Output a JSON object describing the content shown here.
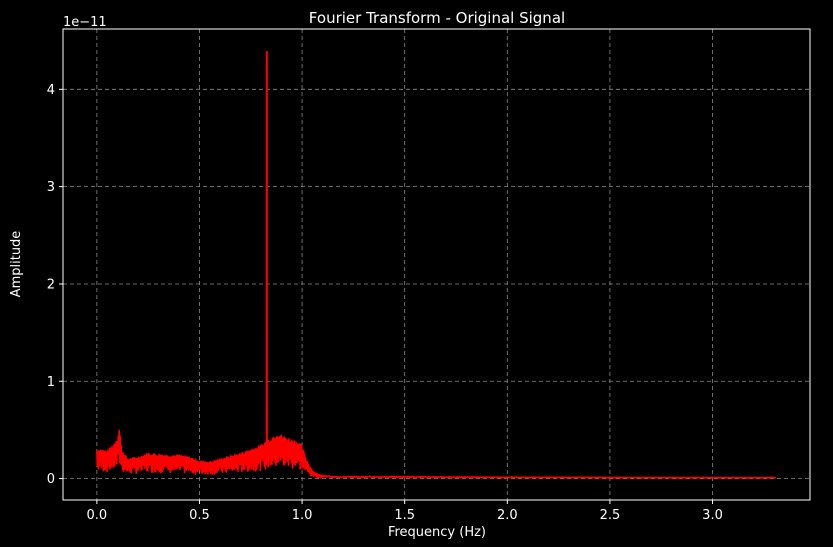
{
  "chart_data": {
    "type": "line",
    "title": "Fourier Transform - Original Signal",
    "xlabel": "Frequency (Hz)",
    "ylabel": "Amplitude",
    "y_offset_label": "1e−11",
    "xlim": [
      -0.165,
      3.475
    ],
    "ylim": [
      -0.22,
      4.62
    ],
    "y_unit_scale": 1e-11,
    "xticks": [
      0.0,
      0.5,
      1.0,
      1.5,
      2.0,
      2.5,
      3.0
    ],
    "xtick_labels": [
      "0.0",
      "0.5",
      "1.0",
      "1.5",
      "2.0",
      "2.5",
      "3.0"
    ],
    "yticks": [
      0,
      1,
      2,
      3,
      4
    ],
    "ytick_labels": [
      "0",
      "1",
      "2",
      "3",
      "4"
    ],
    "grid": true,
    "background": "#000000",
    "series": [
      {
        "color": "#ff0000",
        "x_range": [
          0.0,
          3.31
        ],
        "envelope": [
          [
            0.0,
            0.3
          ],
          [
            0.02,
            0.3
          ],
          [
            0.05,
            0.28
          ],
          [
            0.08,
            0.35
          ],
          [
            0.1,
            0.42
          ],
          [
            0.11,
            0.53
          ],
          [
            0.12,
            0.3
          ],
          [
            0.15,
            0.2
          ],
          [
            0.2,
            0.22
          ],
          [
            0.25,
            0.26
          ],
          [
            0.3,
            0.25
          ],
          [
            0.35,
            0.24
          ],
          [
            0.4,
            0.24
          ],
          [
            0.45,
            0.22
          ],
          [
            0.5,
            0.18
          ],
          [
            0.55,
            0.17
          ],
          [
            0.6,
            0.2
          ],
          [
            0.65,
            0.23
          ],
          [
            0.7,
            0.26
          ],
          [
            0.75,
            0.3
          ],
          [
            0.8,
            0.34
          ],
          [
            0.85,
            0.42
          ],
          [
            0.88,
            0.47
          ],
          [
            0.9,
            0.44
          ],
          [
            0.95,
            0.4
          ],
          [
            0.98,
            0.38
          ],
          [
            1.0,
            0.33
          ],
          [
            1.02,
            0.2
          ],
          [
            1.05,
            0.08
          ],
          [
            1.08,
            0.04
          ],
          [
            1.15,
            0.02
          ],
          [
            1.5,
            0.02
          ],
          [
            2.0,
            0.015
          ],
          [
            2.5,
            0.012
          ],
          [
            3.0,
            0.01
          ],
          [
            3.31,
            0.01
          ]
        ],
        "spikes": [
          {
            "x": 0.828,
            "y": 4.39
          }
        ]
      }
    ]
  }
}
